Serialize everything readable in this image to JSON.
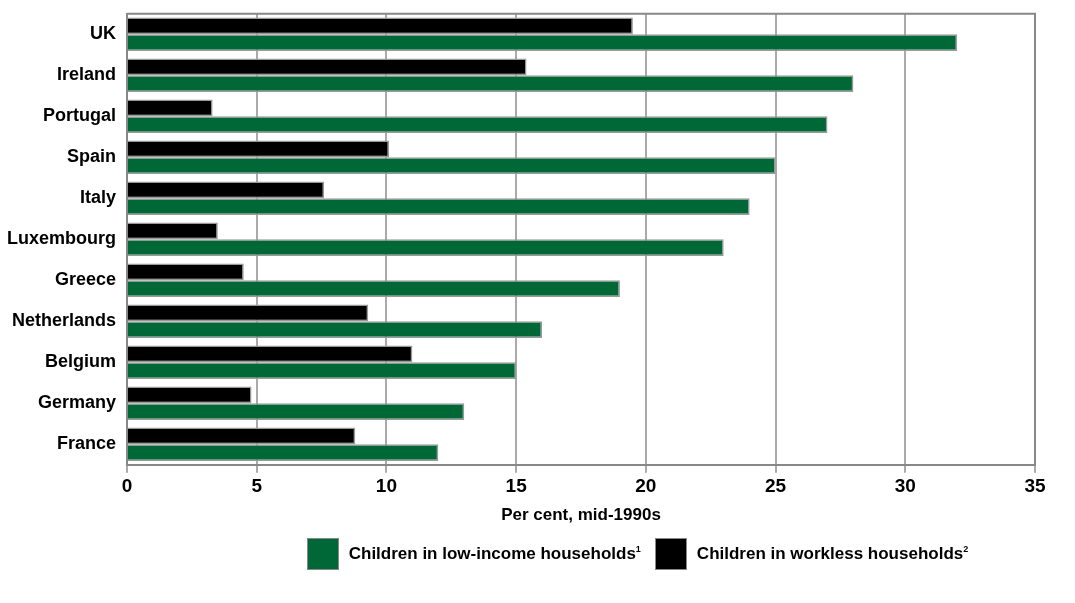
{
  "chart_data": {
    "type": "bar",
    "orientation": "horizontal",
    "xlabel": "Per cent, mid-1990s",
    "categories": [
      "UK",
      "Ireland",
      "Portugal",
      "Spain",
      "Italy",
      "Luxembourg",
      "Greece",
      "Netherlands",
      "Belgium",
      "Germany",
      "France"
    ],
    "series": [
      {
        "name": "Children in low-income households$^{1}$",
        "color": "#006837",
        "values": [
          32,
          28,
          27,
          25,
          24,
          23,
          19,
          16,
          15,
          13,
          12
        ]
      },
      {
        "name": "Children in workless households$^{2}$",
        "color": "#000000",
        "values": [
          19.5,
          15.4,
          3.3,
          10.1,
          7.6,
          3.5,
          4.5,
          9.3,
          11,
          4.8,
          8.8
        ]
      }
    ],
    "xlim": [
      0,
      35
    ],
    "xticks": [
      0,
      5,
      10,
      15,
      20,
      25,
      30,
      35
    ],
    "grid": "x",
    "legend": "bottom"
  }
}
